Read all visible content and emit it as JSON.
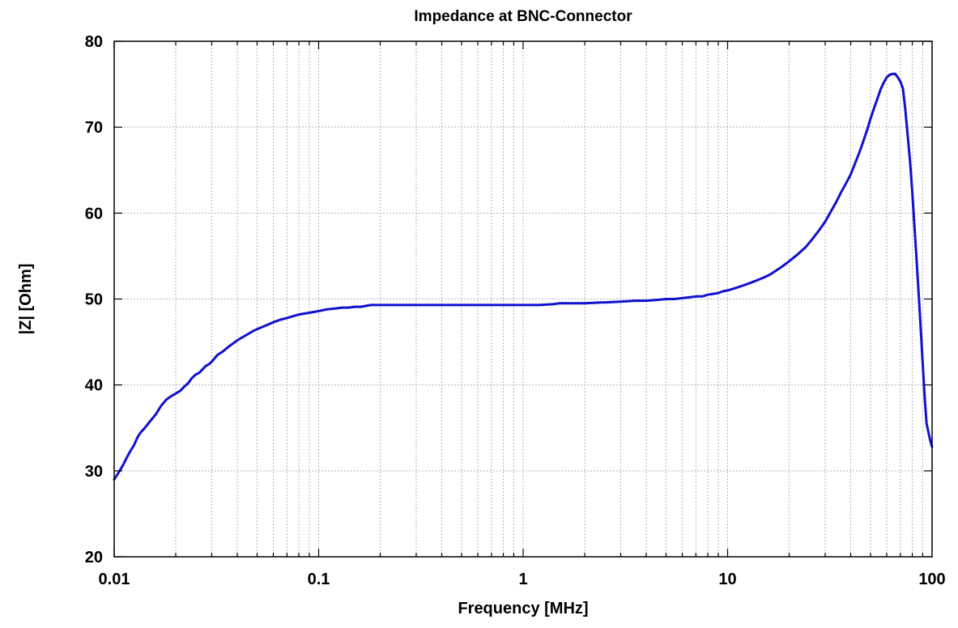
{
  "chart_data": {
    "type": "line",
    "title": "Impedance at BNC-Connector",
    "xlabel": "Frequency [MHz]",
    "ylabel": "|Z| [Ohm]",
    "x_scale": "log",
    "xlim": [
      0.01,
      100
    ],
    "ylim": [
      20,
      80
    ],
    "grid": true,
    "x_ticks": [
      0.01,
      0.1,
      1,
      10,
      100
    ],
    "x_tick_labels": [
      "0.01",
      "0.1",
      "1",
      "10",
      "100"
    ],
    "y_ticks": [
      20,
      30,
      40,
      50,
      60,
      70,
      80
    ],
    "y_tick_labels": [
      "20",
      "30",
      "40",
      "50",
      "60",
      "70",
      "80"
    ],
    "series": [
      {
        "color": "#1010d0",
        "x": [
          0.01,
          0.0105,
          0.011,
          0.0115,
          0.012,
          0.0125,
          0.013,
          0.0135,
          0.014,
          0.015,
          0.016,
          0.017,
          0.018,
          0.019,
          0.02,
          0.021,
          0.022,
          0.023,
          0.024,
          0.025,
          0.026,
          0.027,
          0.028,
          0.029,
          0.03,
          0.032,
          0.034,
          0.036,
          0.038,
          0.04,
          0.042,
          0.045,
          0.048,
          0.05,
          0.055,
          0.06,
          0.065,
          0.07,
          0.075,
          0.08,
          0.085,
          0.09,
          0.1,
          0.11,
          0.12,
          0.13,
          0.14,
          0.15,
          0.16,
          0.17,
          0.18,
          0.2,
          0.3,
          0.5,
          0.7,
          1,
          1.2,
          1.4,
          1.5,
          2,
          2.4,
          2.5,
          3,
          3.5,
          4,
          4.5,
          5,
          5.5,
          6,
          6.5,
          7,
          7.5,
          8,
          8.5,
          9,
          9.5,
          10,
          11,
          12,
          13,
          14,
          15,
          16,
          17,
          18,
          19,
          20,
          22,
          24,
          26,
          28,
          30,
          32,
          34,
          36,
          38,
          40,
          42,
          44,
          46,
          48,
          50,
          52,
          54,
          56,
          58,
          60,
          62,
          64,
          66,
          68,
          70,
          72,
          74,
          76,
          78,
          80,
          82,
          84,
          86,
          88,
          90,
          92,
          94,
          96,
          98,
          100
        ],
        "y": [
          29.0,
          29.8,
          30.6,
          31.5,
          32.3,
          33.0,
          33.9,
          34.5,
          34.9,
          35.8,
          36.6,
          37.6,
          38.3,
          38.7,
          39.0,
          39.3,
          39.8,
          40.2,
          40.8,
          41.2,
          41.4,
          41.8,
          42.2,
          42.4,
          42.7,
          43.5,
          43.9,
          44.4,
          44.8,
          45.2,
          45.5,
          45.9,
          46.3,
          46.5,
          46.9,
          47.3,
          47.6,
          47.8,
          48.0,
          48.2,
          48.3,
          48.4,
          48.6,
          48.8,
          48.9,
          49.0,
          49.0,
          49.1,
          49.1,
          49.2,
          49.3,
          49.3,
          49.3,
          49.3,
          49.3,
          49.3,
          49.3,
          49.4,
          49.5,
          49.5,
          49.6,
          49.6,
          49.7,
          49.8,
          49.8,
          49.9,
          50.0,
          50.0,
          50.1,
          50.2,
          50.3,
          50.3,
          50.5,
          50.6,
          50.7,
          50.9,
          51.0,
          51.3,
          51.6,
          51.9,
          52.2,
          52.5,
          52.8,
          53.2,
          53.6,
          54.0,
          54.4,
          55.2,
          56.0,
          57.0,
          58.0,
          59.0,
          60.2,
          61.3,
          62.5,
          63.5,
          64.5,
          65.8,
          67.0,
          68.3,
          69.6,
          71.0,
          72.2,
          73.3,
          74.4,
          75.2,
          75.8,
          76.1,
          76.2,
          76.2,
          75.8,
          75.3,
          74.5,
          72.0,
          69.0,
          66.0,
          62.5,
          58.5,
          54.5,
          50.5,
          46.5,
          42.5,
          38.5,
          35.5,
          34.5,
          33.5,
          32.8
        ]
      }
    ]
  }
}
